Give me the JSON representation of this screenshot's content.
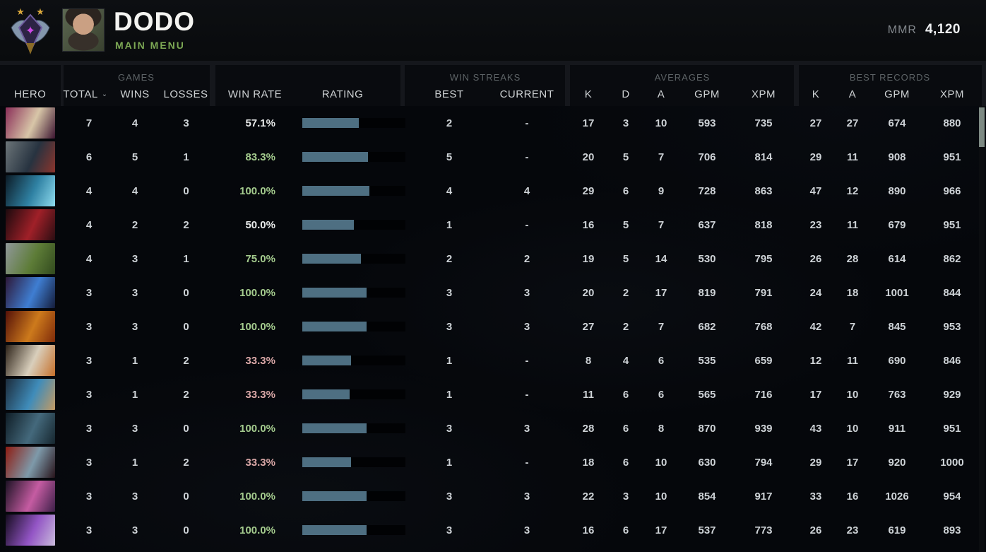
{
  "header": {
    "player_name": "DODO",
    "nav_label": "MAIN MENU",
    "mmr_label": "MMR",
    "mmr_value": "4,120"
  },
  "table": {
    "group_headers": {
      "games": "GAMES",
      "win_streaks": "WIN STREAKS",
      "averages": "AVERAGES",
      "best_records": "BEST RECORDS"
    },
    "column_headers": {
      "hero": "HERO",
      "total": "TOTAL",
      "wins": "WINS",
      "losses": "LOSSES",
      "win_rate": "WIN RATE",
      "rating": "RATING",
      "best": "BEST",
      "current": "CURRENT",
      "k": "K",
      "d": "D",
      "a": "A",
      "gpm": "GPM",
      "xpm": "XPM",
      "rec_k": "K",
      "rec_a": "A",
      "rec_gpm": "GPM",
      "rec_xpm": "XPM"
    },
    "sort_indicator": "⌄",
    "rows": [
      {
        "total": "7",
        "wins": "4",
        "losses": "3",
        "win_rate": "57.1%",
        "win_rate_color": "neutral",
        "rating_fill_pct": 55,
        "streak_best": "2",
        "streak_current": "-",
        "avg": {
          "k": "17",
          "d": "3",
          "a": "10",
          "gpm": "593",
          "xpm": "735"
        },
        "best": {
          "k": "27",
          "a": "27",
          "gpm": "674",
          "xpm": "880"
        },
        "portrait_colors": [
          "#8a2e58",
          "#d8c6a8",
          "#3c1430"
        ]
      },
      {
        "total": "6",
        "wins": "5",
        "losses": "1",
        "win_rate": "83.3%",
        "win_rate_color": "green",
        "rating_fill_pct": 64,
        "streak_best": "5",
        "streak_current": "-",
        "avg": {
          "k": "20",
          "d": "5",
          "a": "7",
          "gpm": "706",
          "xpm": "814"
        },
        "best": {
          "k": "29",
          "a": "11",
          "gpm": "908",
          "xpm": "951"
        },
        "portrait_colors": [
          "#6b7478",
          "#273340",
          "#8c342c"
        ]
      },
      {
        "total": "4",
        "wins": "4",
        "losses": "0",
        "win_rate": "100.0%",
        "win_rate_color": "green",
        "rating_fill_pct": 65,
        "streak_best": "4",
        "streak_current": "4",
        "avg": {
          "k": "29",
          "d": "6",
          "a": "9",
          "gpm": "728",
          "xpm": "863"
        },
        "best": {
          "k": "47",
          "a": "12",
          "gpm": "890",
          "xpm": "966"
        },
        "portrait_colors": [
          "#0c1b26",
          "#2f81a3",
          "#8fdcef"
        ]
      },
      {
        "total": "4",
        "wins": "2",
        "losses": "2",
        "win_rate": "50.0%",
        "win_rate_color": "neutral",
        "rating_fill_pct": 50,
        "streak_best": "1",
        "streak_current": "-",
        "avg": {
          "k": "16",
          "d": "5",
          "a": "7",
          "gpm": "637",
          "xpm": "818"
        },
        "best": {
          "k": "23",
          "a": "11",
          "gpm": "679",
          "xpm": "951"
        },
        "portrait_colors": [
          "#1c0a0e",
          "#a02028",
          "#2a0d12"
        ]
      },
      {
        "total": "4",
        "wins": "3",
        "losses": "1",
        "win_rate": "75.0%",
        "win_rate_color": "green",
        "rating_fill_pct": 57,
        "streak_best": "2",
        "streak_current": "2",
        "avg": {
          "k": "19",
          "d": "5",
          "a": "14",
          "gpm": "530",
          "xpm": "795"
        },
        "best": {
          "k": "26",
          "a": "28",
          "gpm": "614",
          "xpm": "862"
        },
        "portrait_colors": [
          "#90989a",
          "#5d7c37",
          "#324a1e"
        ]
      },
      {
        "total": "3",
        "wins": "3",
        "losses": "0",
        "win_rate": "100.0%",
        "win_rate_color": "green",
        "rating_fill_pct": 62,
        "streak_best": "3",
        "streak_current": "3",
        "avg": {
          "k": "20",
          "d": "2",
          "a": "17",
          "gpm": "819",
          "xpm": "791"
        },
        "best": {
          "k": "24",
          "a": "18",
          "gpm": "1001",
          "xpm": "844"
        },
        "portrait_colors": [
          "#2d1838",
          "#3f7ed2",
          "#141c3a"
        ]
      },
      {
        "total": "3",
        "wins": "3",
        "losses": "0",
        "win_rate": "100.0%",
        "win_rate_color": "green",
        "rating_fill_pct": 62,
        "streak_best": "3",
        "streak_current": "3",
        "avg": {
          "k": "27",
          "d": "2",
          "a": "7",
          "gpm": "682",
          "xpm": "768"
        },
        "best": {
          "k": "42",
          "a": "7",
          "gpm": "845",
          "xpm": "953"
        },
        "portrait_colors": [
          "#551108",
          "#cd7a1c",
          "#7e2a0a"
        ]
      },
      {
        "total": "3",
        "wins": "1",
        "losses": "2",
        "win_rate": "33.3%",
        "win_rate_color": "red",
        "rating_fill_pct": 47,
        "streak_best": "1",
        "streak_current": "-",
        "avg": {
          "k": "8",
          "d": "4",
          "a": "6",
          "gpm": "535",
          "xpm": "659"
        },
        "best": {
          "k": "12",
          "a": "11",
          "gpm": "690",
          "xpm": "846"
        },
        "portrait_colors": [
          "#2c2218",
          "#d9cfbc",
          "#c56f2a"
        ]
      },
      {
        "total": "3",
        "wins": "1",
        "losses": "2",
        "win_rate": "33.3%",
        "win_rate_color": "red",
        "rating_fill_pct": 46,
        "streak_best": "1",
        "streak_current": "-",
        "avg": {
          "k": "11",
          "d": "6",
          "a": "6",
          "gpm": "565",
          "xpm": "716"
        },
        "best": {
          "k": "17",
          "a": "10",
          "gpm": "763",
          "xpm": "929"
        },
        "portrait_colors": [
          "#1c2c3c",
          "#3f8cba",
          "#c49a62"
        ]
      },
      {
        "total": "3",
        "wins": "3",
        "losses": "0",
        "win_rate": "100.0%",
        "win_rate_color": "green",
        "rating_fill_pct": 62,
        "streak_best": "3",
        "streak_current": "3",
        "avg": {
          "k": "28",
          "d": "6",
          "a": "8",
          "gpm": "870",
          "xpm": "939"
        },
        "best": {
          "k": "43",
          "a": "10",
          "gpm": "911",
          "xpm": "951"
        },
        "portrait_colors": [
          "#0f1d26",
          "#44697c",
          "#16262e"
        ]
      },
      {
        "total": "3",
        "wins": "1",
        "losses": "2",
        "win_rate": "33.3%",
        "win_rate_color": "red",
        "rating_fill_pct": 47,
        "streak_best": "1",
        "streak_current": "-",
        "avg": {
          "k": "18",
          "d": "6",
          "a": "10",
          "gpm": "630",
          "xpm": "794"
        },
        "best": {
          "k": "29",
          "a": "17",
          "gpm": "920",
          "xpm": "1000"
        },
        "portrait_colors": [
          "#8e1c12",
          "#7e9aaa",
          "#27131a"
        ]
      },
      {
        "total": "3",
        "wins": "3",
        "losses": "0",
        "win_rate": "100.0%",
        "win_rate_color": "green",
        "rating_fill_pct": 62,
        "streak_best": "3",
        "streak_current": "3",
        "avg": {
          "k": "22",
          "d": "3",
          "a": "10",
          "gpm": "854",
          "xpm": "917"
        },
        "best": {
          "k": "33",
          "a": "16",
          "gpm": "1026",
          "xpm": "954"
        },
        "portrait_colors": [
          "#1c1224",
          "#c55ca2",
          "#3c1f48"
        ]
      },
      {
        "total": "3",
        "wins": "3",
        "losses": "0",
        "win_rate": "100.0%",
        "win_rate_color": "green",
        "rating_fill_pct": 62,
        "streak_best": "3",
        "streak_current": "3",
        "avg": {
          "k": "16",
          "d": "6",
          "a": "17",
          "gpm": "537",
          "xpm": "773"
        },
        "best": {
          "k": "26",
          "a": "23",
          "gpm": "619",
          "xpm": "893"
        },
        "portrait_colors": [
          "#160c20",
          "#9355c5",
          "#c9bcdc"
        ]
      }
    ]
  },
  "colors": {
    "accent_green": "#7ca854",
    "win_green": "#a4cb8e",
    "win_red": "#d9a7a7",
    "win_neutral": "#e8eaea",
    "bar_fill": "#4e6f82",
    "bar_empty": "#010204",
    "text_primary": "#ced3d7",
    "text_header": "#cfd3d5",
    "text_group": "#5d6366",
    "mmr_value": "#eef0f2",
    "mmr_label": "#83888d",
    "scroll_thumb": "#7d8a83",
    "gold_star": "#d9a83c",
    "medal_magenta": "#cf49e8"
  }
}
